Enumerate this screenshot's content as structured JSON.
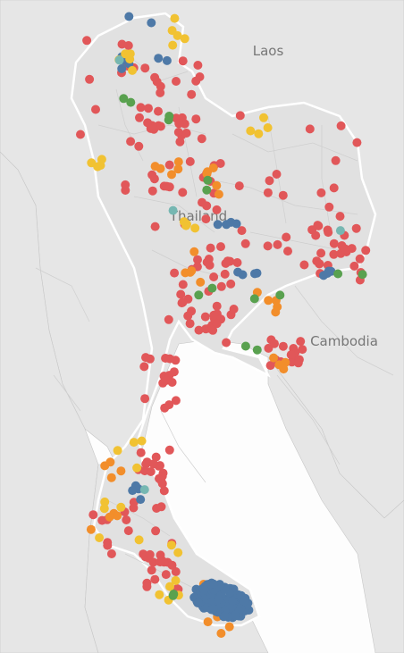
{
  "map": {
    "labels": {
      "laos": "Laos",
      "thailand": "Thailand",
      "cambodia": "Cambodia"
    },
    "colors": {
      "land": "#e6e6e6",
      "sea": "#fdfdfd",
      "border": "#c7c7c7",
      "thai_land": "#e1e1e1",
      "red": "#e15759",
      "blue": "#4e79a7",
      "orange": "#f28e2b",
      "yellow": "#f1c232",
      "green": "#59a14f",
      "teal": "#76b7b2"
    },
    "point_groups": [
      {
        "name": "red",
        "count": 240
      },
      {
        "name": "blue",
        "count": 24
      },
      {
        "name": "orange",
        "count": 40
      },
      {
        "name": "yellow",
        "count": 38
      },
      {
        "name": "green",
        "count": 16
      },
      {
        "name": "teal",
        "count": 4
      }
    ]
  }
}
